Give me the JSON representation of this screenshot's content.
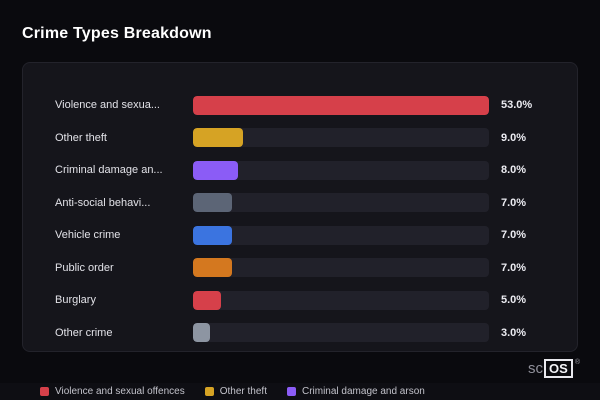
{
  "header": {
    "title": "Crime Types Breakdown"
  },
  "chart_data": {
    "type": "bar",
    "orientation": "horizontal",
    "title": "Crime Types Breakdown",
    "categories": [
      "Violence and sexua...",
      "Other theft",
      "Criminal damage an...",
      "Anti-social behavi...",
      "Vehicle crime",
      "Public order",
      "Burglary",
      "Other crime"
    ],
    "values": [
      53.0,
      9.0,
      8.0,
      7.0,
      7.0,
      7.0,
      5.0,
      3.0
    ],
    "value_labels": [
      "53.0%",
      "9.0%",
      "8.0%",
      "7.0%",
      "7.0%",
      "7.0%",
      "5.0%",
      "3.0%"
    ],
    "bar_colors": [
      "#d6404a",
      "#d6a324",
      "#8b5cf6",
      "#5c6576",
      "#3b74e0",
      "#d4781f",
      "#d6404a",
      "#8d95a2"
    ],
    "xlabel": "",
    "ylabel": "",
    "xlim": [
      0,
      53
    ],
    "grid": false,
    "legend_position": "bottom",
    "track_color": "#21212a"
  },
  "legend": {
    "items": [
      {
        "label": "Violence and sexual offences",
        "color": "#d6404a"
      },
      {
        "label": "Other theft",
        "color": "#d6a324"
      },
      {
        "label": "Criminal damage and arson",
        "color": "#8b5cf6"
      }
    ]
  },
  "branding": {
    "prefix": "sc",
    "box": "OS",
    "registered": "®"
  }
}
